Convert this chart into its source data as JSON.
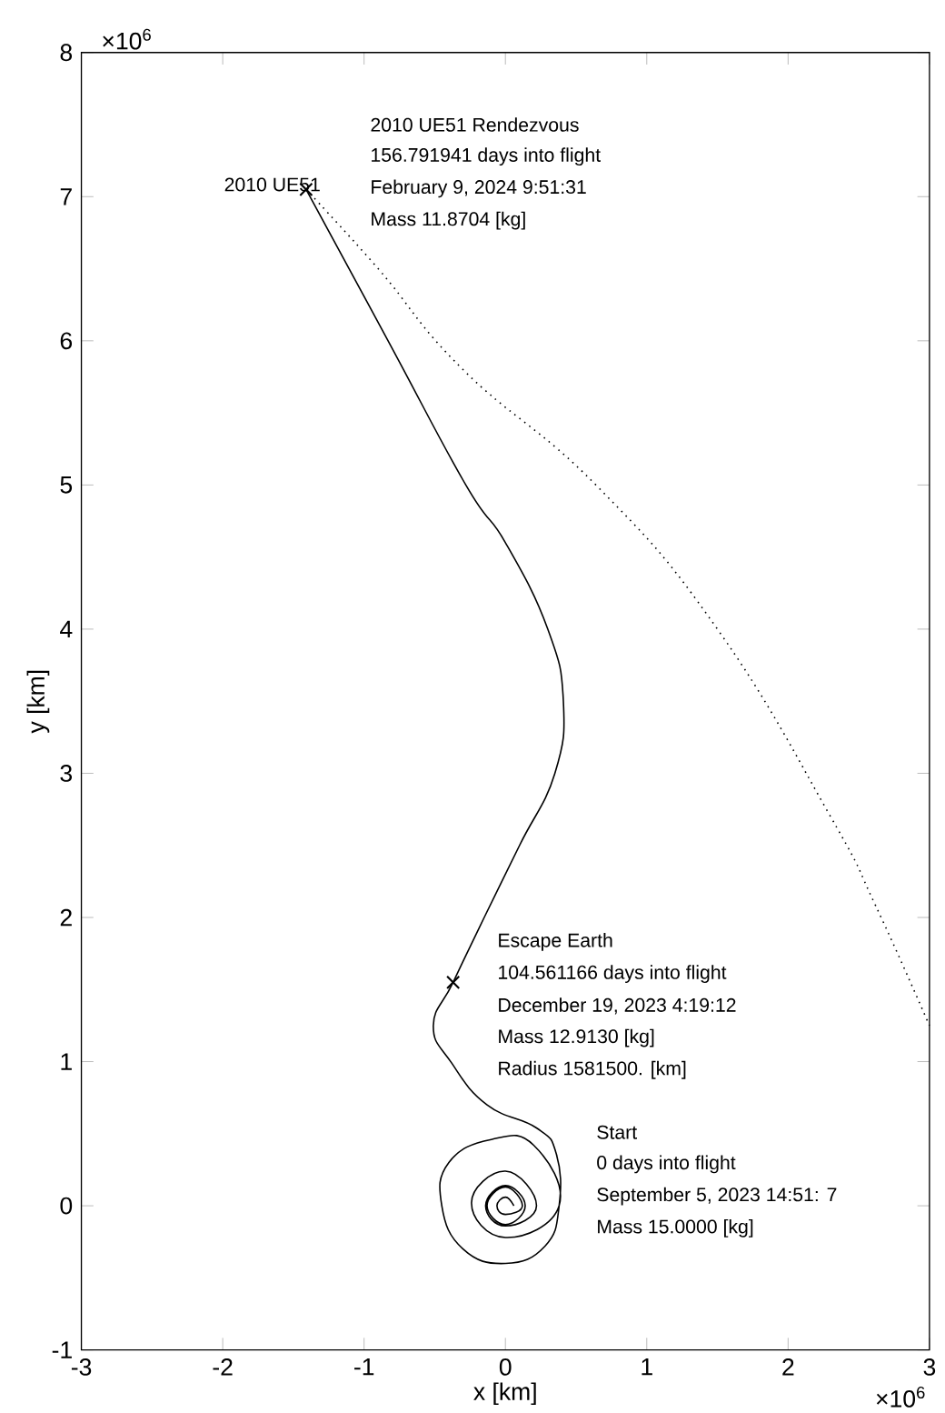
{
  "chart_data": {
    "type": "line",
    "xlabel": "x [km]",
    "ylabel": "y [km]",
    "xlim": [
      -3,
      3
    ],
    "ylim": [
      -1,
      8
    ],
    "xticks": [
      -3,
      -2,
      -1,
      0,
      1,
      2,
      3
    ],
    "yticks": [
      -1,
      0,
      1,
      2,
      3,
      4,
      5,
      6,
      7,
      8
    ],
    "grid": false,
    "series": [
      {
        "color": "#000000",
        "line_style": "solid",
        "x": [
          0.06,
          0,
          -0.06,
          0,
          0.12,
          0,
          -0.13,
          0,
          0.14,
          0,
          -0.14,
          0,
          0.22,
          0,
          -0.24,
          0,
          0.38,
          0.2,
          -0.1,
          -0.4,
          -0.45,
          -0.3,
          0,
          0.28,
          0.38,
          0.36,
          0.22,
          -0.13,
          -0.38,
          -0.51,
          -0.37,
          -0.15,
          0.1,
          0.35,
          0.41,
          0.3,
          0,
          -0.28,
          -0.83,
          -1.41
        ],
        "values": [
          0,
          0.06,
          0,
          -0.06,
          0,
          0.13,
          0,
          -0.13,
          0,
          0.14,
          0,
          -0.14,
          0,
          0.24,
          0.02,
          -0.22,
          0,
          0.42,
          0.46,
          0.3,
          0,
          -0.3,
          -0.4,
          -0.28,
          0,
          0.36,
          0.54,
          0.7,
          0.99,
          1.25,
          1.55,
          2.0,
          2.5,
          3.0,
          3.5,
          4.0,
          4.6,
          5.0,
          6.0,
          7.05
        ]
      },
      {
        "color": "#000000",
        "line_style": "dotted",
        "x": [
          -1.41,
          -0.9,
          -0.3,
          0.64,
          1.5,
          2.3,
          2.62,
          3
        ],
        "values": [
          7.05,
          6.5,
          5.8,
          5.0,
          4.0,
          2.7,
          2.08,
          1.25
        ]
      },
      {
        "type": "scatter",
        "color": "#000000",
        "marker": "cross",
        "x": [
          -1.41,
          -0.37
        ],
        "values": [
          7.05,
          1.55
        ]
      }
    ],
    "annotations": [
      {
        "text": "2010 UE51",
        "x": -1.41,
        "y": 7.05
      },
      "2010 UE51 Rendezvous",
      "156.791941 days into flight",
      "February 9, 2024 9:51:31",
      "Mass 11.8704 [kg]",
      "Escape Earth",
      "104.561166 days into flight",
      "December 19, 2023 4:19:12",
      "Mass 12.9130 [kg]",
      "Radius 1581500. [km]",
      "Start",
      "0 days into flight",
      "September 5, 2023 14:51: 7",
      "Mass 15.0000 [kg]",
      "×10$^{6}$",
      "×10$^{6}$"
    ]
  }
}
